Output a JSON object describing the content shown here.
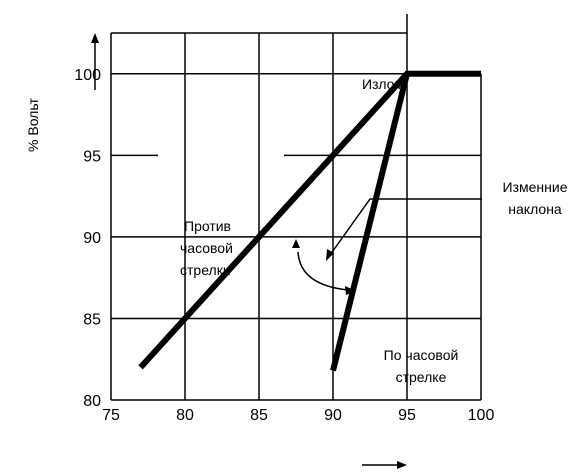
{
  "chart_data": {
    "type": "line",
    "title": "",
    "xlabel": "",
    "ylabel": "% Вольт",
    "xlim": [
      75,
      100
    ],
    "ylim": [
      80,
      102.5
    ],
    "x_ticks": [
      "75",
      "80",
      "85",
      "90",
      "95",
      "100"
    ],
    "y_ticks": [
      "80",
      "85",
      "90",
      "95",
      "100"
    ],
    "grid": true,
    "legend": "none",
    "series": [
      {
        "x": [
          77,
          95,
          100
        ],
        "y": [
          82,
          100,
          100
        ]
      },
      {
        "x": [
          90,
          95
        ],
        "y": [
          81.8,
          100
        ]
      }
    ],
    "annotations": {
      "knee": "Излом",
      "slope_change": [
        "Изменние",
        "наклона"
      ],
      "counterclockwise": [
        "Против",
        "часовой",
        "стрелки"
      ],
      "clockwise": [
        "По часовой",
        "стрелке"
      ]
    },
    "colors": {
      "line": "#000000",
      "grid": "#000000",
      "background": "#ffffff"
    }
  }
}
